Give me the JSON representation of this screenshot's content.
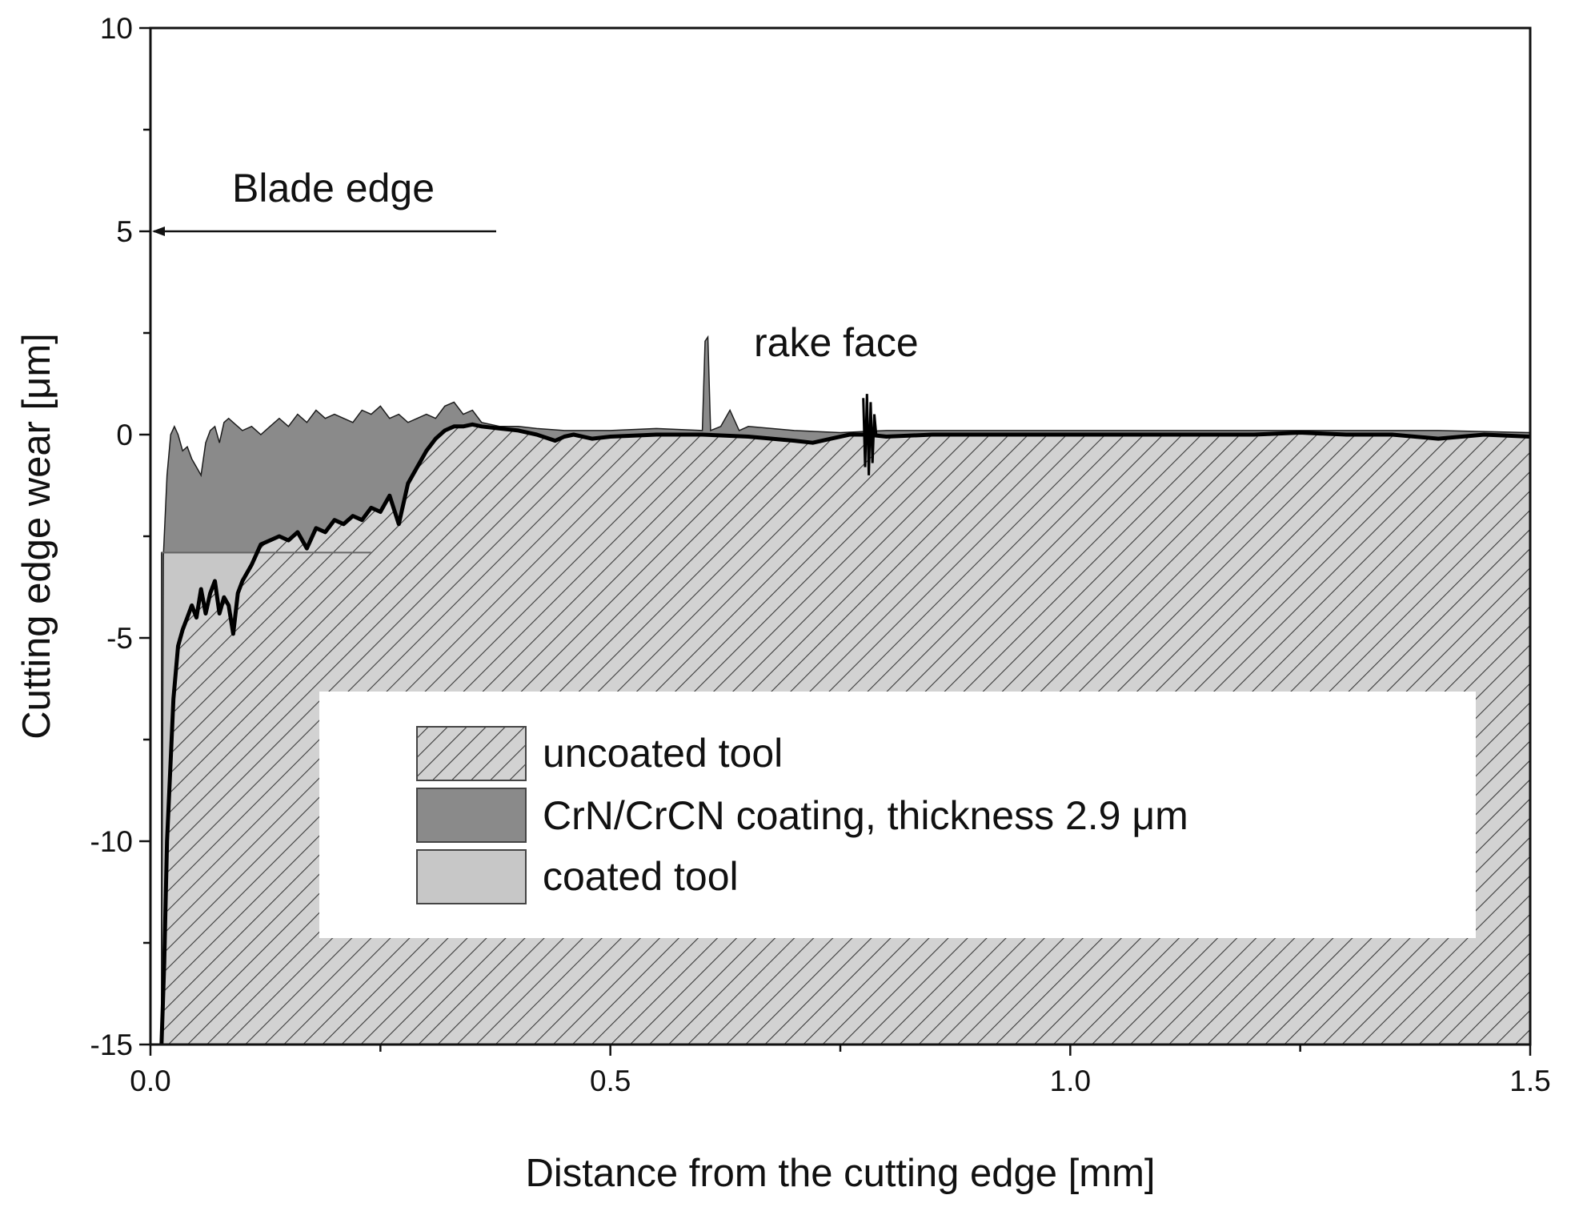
{
  "chart_data": {
    "type": "area",
    "title": "",
    "xlabel": "Distance from the cutting edge [mm]",
    "ylabel": "Cutting edge wear [μm]",
    "xlim": [
      0,
      1.5
    ],
    "ylim": [
      -15,
      10
    ],
    "x_ticks": [
      "0.0",
      "0.5",
      "1.0",
      "1.5"
    ],
    "y_ticks": [
      "-15",
      "-10",
      "-5",
      "0",
      "5",
      "10"
    ],
    "grid": false,
    "legend_placement": "lower-right inside plot",
    "legend": [
      {
        "label": "uncoated tool",
        "pattern": "diagonal-hatch",
        "color": "#d2d2d2"
      },
      {
        "label": "CrN/CrCN coating, thickness 2.9 μm",
        "color": "#8a8a8a"
      },
      {
        "label": "coated tool",
        "color": "#c7c7c7"
      }
    ],
    "annotations": [
      {
        "text": "Blade edge",
        "arrow": "left",
        "arrow_y": 5
      },
      {
        "text": "rake face"
      }
    ],
    "coating_thickness_um": 2.9,
    "series": [
      {
        "name": "uncoated tool",
        "x": [
          0.012,
          0.015,
          0.018,
          0.022,
          0.025,
          0.03,
          0.035,
          0.04,
          0.045,
          0.05,
          0.055,
          0.06,
          0.065,
          0.07,
          0.075,
          0.08,
          0.085,
          0.09,
          0.095,
          0.1,
          0.11,
          0.12,
          0.13,
          0.14,
          0.15,
          0.16,
          0.17,
          0.18,
          0.19,
          0.2,
          0.21,
          0.22,
          0.23,
          0.24,
          0.25,
          0.26,
          0.27,
          0.28,
          0.29,
          0.3,
          0.31,
          0.32,
          0.33,
          0.34,
          0.35,
          0.36,
          0.38,
          0.4,
          0.42,
          0.44,
          0.45,
          0.46,
          0.48,
          0.5,
          0.55,
          0.6,
          0.65,
          0.7,
          0.72,
          0.74,
          0.76,
          0.78,
          0.8,
          0.85,
          0.9,
          1.0,
          1.1,
          1.2,
          1.25,
          1.3,
          1.35,
          1.4,
          1.45,
          1.5
        ],
        "y": [
          -15,
          -13,
          -10,
          -8,
          -6.5,
          -5.2,
          -4.8,
          -4.5,
          -4.2,
          -4.5,
          -3.8,
          -4.4,
          -3.9,
          -3.6,
          -4.4,
          -4.0,
          -4.2,
          -4.9,
          -3.9,
          -3.6,
          -3.2,
          -2.7,
          -2.6,
          -2.5,
          -2.6,
          -2.4,
          -2.8,
          -2.3,
          -2.4,
          -2.1,
          -2.2,
          -2.0,
          -2.1,
          -1.8,
          -1.9,
          -1.5,
          -2.2,
          -1.2,
          -0.8,
          -0.4,
          -0.1,
          0.1,
          0.2,
          0.2,
          0.25,
          0.2,
          0.15,
          0.1,
          0.0,
          -0.15,
          -0.05,
          0.0,
          -0.1,
          -0.05,
          0.0,
          0.0,
          -0.05,
          -0.15,
          -0.2,
          -0.1,
          0.0,
          0.0,
          -0.05,
          0.0,
          0.0,
          0.0,
          0.0,
          0.0,
          0.05,
          0.0,
          0.0,
          -0.1,
          0.0,
          -0.05
        ]
      },
      {
        "name": "CrN/CrCN coating, thickness 2.9 μm",
        "x": [
          0.012,
          0.014,
          0.018,
          0.022,
          0.026,
          0.03,
          0.035,
          0.04,
          0.045,
          0.05,
          0.055,
          0.06,
          0.065,
          0.07,
          0.075,
          0.08,
          0.085,
          0.09,
          0.1,
          0.11,
          0.12,
          0.13,
          0.14,
          0.15,
          0.16,
          0.17,
          0.18,
          0.19,
          0.2,
          0.21,
          0.22,
          0.23,
          0.24,
          0.25,
          0.26,
          0.27,
          0.28,
          0.29,
          0.3,
          0.31,
          0.32,
          0.33,
          0.34,
          0.35,
          0.36,
          0.38,
          0.4,
          0.42,
          0.45,
          0.5,
          0.55,
          0.6,
          0.603,
          0.606,
          0.609,
          0.62,
          0.63,
          0.64,
          0.65,
          0.7,
          0.75,
          0.8,
          0.9,
          1.0,
          1.1,
          1.2,
          1.3,
          1.4,
          1.5
        ],
        "y": [
          -15,
          -3.0,
          -1.0,
          0.0,
          0.2,
          0.0,
          -0.4,
          -0.3,
          -0.6,
          -0.8,
          -1.0,
          -0.2,
          0.1,
          0.2,
          -0.2,
          0.3,
          0.4,
          0.3,
          0.1,
          0.2,
          0.0,
          0.2,
          0.4,
          0.2,
          0.5,
          0.3,
          0.6,
          0.4,
          0.5,
          0.4,
          0.3,
          0.6,
          0.5,
          0.7,
          0.4,
          0.5,
          0.3,
          0.4,
          0.5,
          0.4,
          0.7,
          0.8,
          0.5,
          0.6,
          0.3,
          0.2,
          0.2,
          0.15,
          0.1,
          0.1,
          0.15,
          0.1,
          2.3,
          2.4,
          0.1,
          0.2,
          0.6,
          0.1,
          0.2,
          0.1,
          0.05,
          0.1,
          0.1,
          0.1,
          0.1,
          0.1,
          0.1,
          0.1,
          0.05
        ]
      }
    ]
  }
}
